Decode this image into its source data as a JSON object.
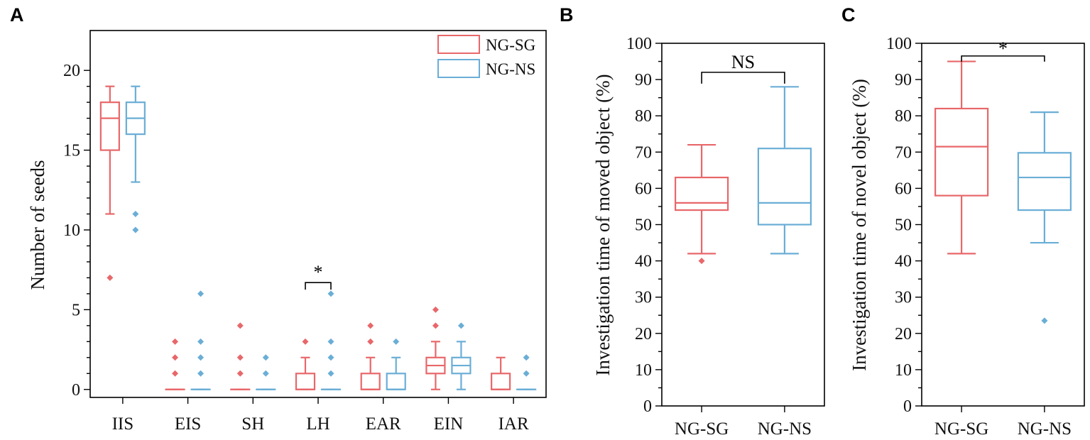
{
  "colors": {
    "ng_sg": "#e8676a",
    "ng_ns": "#6aaed6"
  },
  "chart_data": [
    {
      "panel": "A",
      "type": "box",
      "xlabel": "",
      "ylabel": "Number of seeds",
      "ylim": [
        -0.5,
        22.5
      ],
      "yticks": [
        0,
        5,
        10,
        15,
        20
      ],
      "legend_position": "top-right",
      "legend": [
        "NG-SG",
        "NG-NS"
      ],
      "categories": [
        "IIS",
        "EIS",
        "SH",
        "LH",
        "EAR",
        "EIN",
        "IAR"
      ],
      "series": [
        {
          "name": "NG-SG",
          "color_key": "ng_sg",
          "boxes": [
            {
              "min": 11,
              "q1": 15,
              "median": 17,
              "q3": 18,
              "max": 19,
              "outliers": [
                7
              ]
            },
            {
              "min": 0,
              "q1": 0,
              "median": 0,
              "q3": 0,
              "max": 0,
              "outliers": [
                1,
                2,
                3
              ]
            },
            {
              "min": 0,
              "q1": 0,
              "median": 0,
              "q3": 0,
              "max": 0,
              "outliers": [
                1,
                2,
                4
              ]
            },
            {
              "min": 0,
              "q1": 0,
              "median": 0,
              "q3": 1,
              "max": 2,
              "outliers": [
                3
              ]
            },
            {
              "min": 0,
              "q1": 0,
              "median": 0,
              "q3": 1,
              "max": 2,
              "outliers": [
                3,
                4
              ]
            },
            {
              "min": 0,
              "q1": 1,
              "median": 1.5,
              "q3": 2,
              "max": 3,
              "outliers": [
                4,
                5
              ]
            },
            {
              "min": 0,
              "q1": 0,
              "median": 0,
              "q3": 1,
              "max": 2,
              "outliers": []
            }
          ]
        },
        {
          "name": "NG-NS",
          "color_key": "ng_ns",
          "boxes": [
            {
              "min": 13,
              "q1": 16,
              "median": 17,
              "q3": 18,
              "max": 19,
              "outliers": [
                10,
                11
              ]
            },
            {
              "min": 0,
              "q1": 0,
              "median": 0,
              "q3": 0,
              "max": 0,
              "outliers": [
                1,
                2,
                3,
                6
              ]
            },
            {
              "min": 0,
              "q1": 0,
              "median": 0,
              "q3": 0,
              "max": 0,
              "outliers": [
                1,
                2
              ]
            },
            {
              "min": 0,
              "q1": 0,
              "median": 0,
              "q3": 0,
              "max": 0,
              "outliers": [
                1,
                2,
                3,
                6
              ]
            },
            {
              "min": 0,
              "q1": 0,
              "median": 0,
              "q3": 1,
              "max": 2,
              "outliers": [
                3
              ]
            },
            {
              "min": 0,
              "q1": 1,
              "median": 1.5,
              "q3": 2,
              "max": 3,
              "outliers": [
                4
              ]
            },
            {
              "min": 0,
              "q1": 0,
              "median": 0,
              "q3": 0,
              "max": 0,
              "outliers": [
                1,
                2
              ]
            }
          ]
        }
      ],
      "annotations": [
        {
          "category": "LH",
          "label": "*",
          "y": 6.7
        }
      ]
    },
    {
      "panel": "B",
      "type": "box",
      "xlabel": "",
      "ylabel": "Investigation time of moved object (%)",
      "ylim": [
        0,
        100
      ],
      "yticks": [
        0,
        10,
        20,
        30,
        40,
        50,
        60,
        70,
        80,
        90,
        100
      ],
      "categories": [
        "NG-SG",
        "NG-NS"
      ],
      "series": [
        {
          "name": "NG-SG",
          "color_key": "ng_sg",
          "box": {
            "min": 42,
            "q1": 54,
            "median": 56,
            "q3": 63,
            "max": 72,
            "outliers": [
              40
            ]
          }
        },
        {
          "name": "NG-NS",
          "color_key": "ng_ns",
          "box": {
            "min": 42,
            "q1": 50,
            "median": 56,
            "q3": 71,
            "max": 88,
            "outliers": []
          }
        }
      ],
      "annotations": [
        {
          "label": "NS",
          "y": 92
        }
      ]
    },
    {
      "panel": "C",
      "type": "box",
      "xlabel": "",
      "ylabel": "Investigation time of novel object (%)",
      "ylim": [
        0,
        100
      ],
      "yticks": [
        0,
        10,
        20,
        30,
        40,
        50,
        60,
        70,
        80,
        90,
        100
      ],
      "categories": [
        "NG-SG",
        "NG-NS"
      ],
      "series": [
        {
          "name": "NG-SG",
          "color_key": "ng_sg",
          "box": {
            "min": 42,
            "q1": 58,
            "median": 71.5,
            "q3": 82,
            "max": 95,
            "outliers": []
          }
        },
        {
          "name": "NG-NS",
          "color_key": "ng_ns",
          "box": {
            "min": 45,
            "q1": 54,
            "median": 63,
            "q3": 69.8,
            "max": 81,
            "outliers": [
              23.5
            ]
          }
        }
      ],
      "annotations": [
        {
          "label": "*",
          "y": 96.5
        }
      ]
    }
  ]
}
